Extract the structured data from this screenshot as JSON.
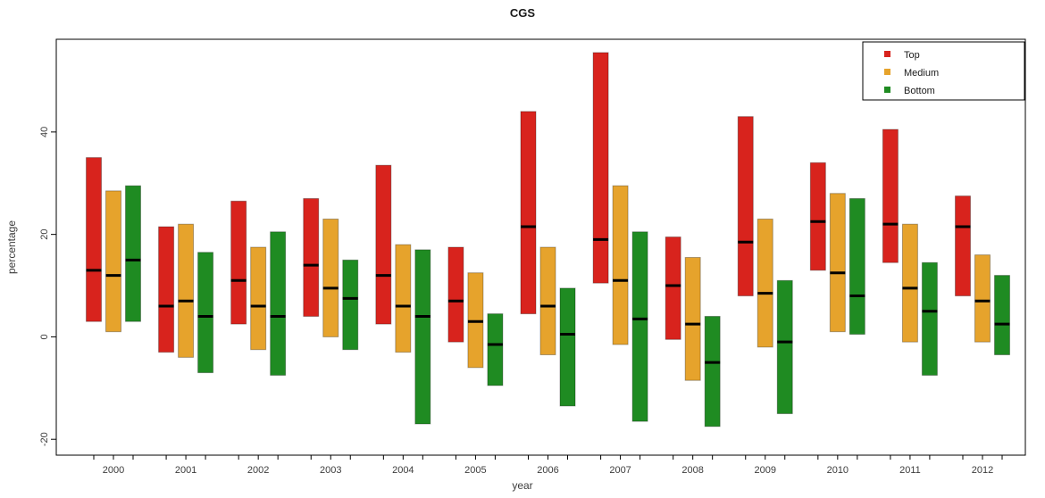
{
  "chart_data": {
    "type": "bar",
    "variant": "floating-range-bars-with-median",
    "title": "CGS",
    "xlabel": "year",
    "ylabel": "percentage",
    "ylim": [
      -23.1,
      58.1
    ],
    "yticks": [
      -20,
      0,
      20,
      40
    ],
    "grid": false,
    "legend": {
      "position": "top-right",
      "entries": [
        "Top",
        "Medium",
        "Bottom"
      ]
    },
    "colors": {
      "top": "#d8231d",
      "medium": "#e6a32c",
      "bottom": "#1f8b22",
      "median_line": "#000000",
      "axis": "#000000"
    },
    "categories": [
      "2000",
      "2001",
      "2002",
      "2003",
      "2004",
      "2005",
      "2006",
      "2007",
      "2008",
      "2009",
      "2010",
      "2011",
      "2012"
    ],
    "series": [
      {
        "name": "Top",
        "color": "#d8231d",
        "data": [
          {
            "low": 3,
            "median": 13,
            "high": 35
          },
          {
            "low": -3,
            "median": 6,
            "high": 21.5
          },
          {
            "low": 2.5,
            "median": 11,
            "high": 26.5
          },
          {
            "low": 4,
            "median": 14,
            "high": 27
          },
          {
            "low": 2.5,
            "median": 12,
            "high": 33.5
          },
          {
            "low": -1,
            "median": 7,
            "high": 17.5
          },
          {
            "low": 4.5,
            "median": 21.5,
            "high": 44
          },
          {
            "low": 10.5,
            "median": 19,
            "high": 55.5
          },
          {
            "low": -0.5,
            "median": 10,
            "high": 19.5
          },
          {
            "low": 8,
            "median": 18.5,
            "high": 43
          },
          {
            "low": 13,
            "median": 22.5,
            "high": 34
          },
          {
            "low": 14.5,
            "median": 22,
            "high": 40.5
          },
          {
            "low": 8,
            "median": 21.5,
            "high": 27.5
          }
        ]
      },
      {
        "name": "Medium",
        "color": "#e6a32c",
        "data": [
          {
            "low": 1,
            "median": 12,
            "high": 28.5
          },
          {
            "low": -4,
            "median": 7,
            "high": 22
          },
          {
            "low": -2.5,
            "median": 6,
            "high": 17.5
          },
          {
            "low": 0,
            "median": 9.5,
            "high": 23
          },
          {
            "low": -3,
            "median": 6,
            "high": 18
          },
          {
            "low": -6,
            "median": 3,
            "high": 12.5
          },
          {
            "low": -3.5,
            "median": 6,
            "high": 17.5
          },
          {
            "low": -1.5,
            "median": 11,
            "high": 29.5
          },
          {
            "low": -8.5,
            "median": 2.5,
            "high": 15.5
          },
          {
            "low": -2,
            "median": 8.5,
            "high": 23
          },
          {
            "low": 1,
            "median": 12.5,
            "high": 28
          },
          {
            "low": -1,
            "median": 9.5,
            "high": 22
          },
          {
            "low": -1,
            "median": 7,
            "high": 16
          }
        ]
      },
      {
        "name": "Bottom",
        "color": "#1f8b22",
        "data": [
          {
            "low": 3,
            "median": 15,
            "high": 29.5
          },
          {
            "low": -7,
            "median": 4,
            "high": 16.5
          },
          {
            "low": -7.5,
            "median": 4,
            "high": 20.5
          },
          {
            "low": -2.5,
            "median": 7.5,
            "high": 15
          },
          {
            "low": -17,
            "median": 4,
            "high": 17
          },
          {
            "low": -9.5,
            "median": -1.5,
            "high": 4.5
          },
          {
            "low": -13.5,
            "median": 0.5,
            "high": 9.5
          },
          {
            "low": -16.5,
            "median": 3.5,
            "high": 20.5
          },
          {
            "low": -17.5,
            "median": -5,
            "high": 4
          },
          {
            "low": -15,
            "median": -1,
            "high": 11
          },
          {
            "low": 0.5,
            "median": 8,
            "high": 27
          },
          {
            "low": -7.5,
            "median": 5,
            "high": 14.5
          },
          {
            "low": -3.5,
            "median": 2.5,
            "high": 12
          }
        ]
      }
    ]
  }
}
